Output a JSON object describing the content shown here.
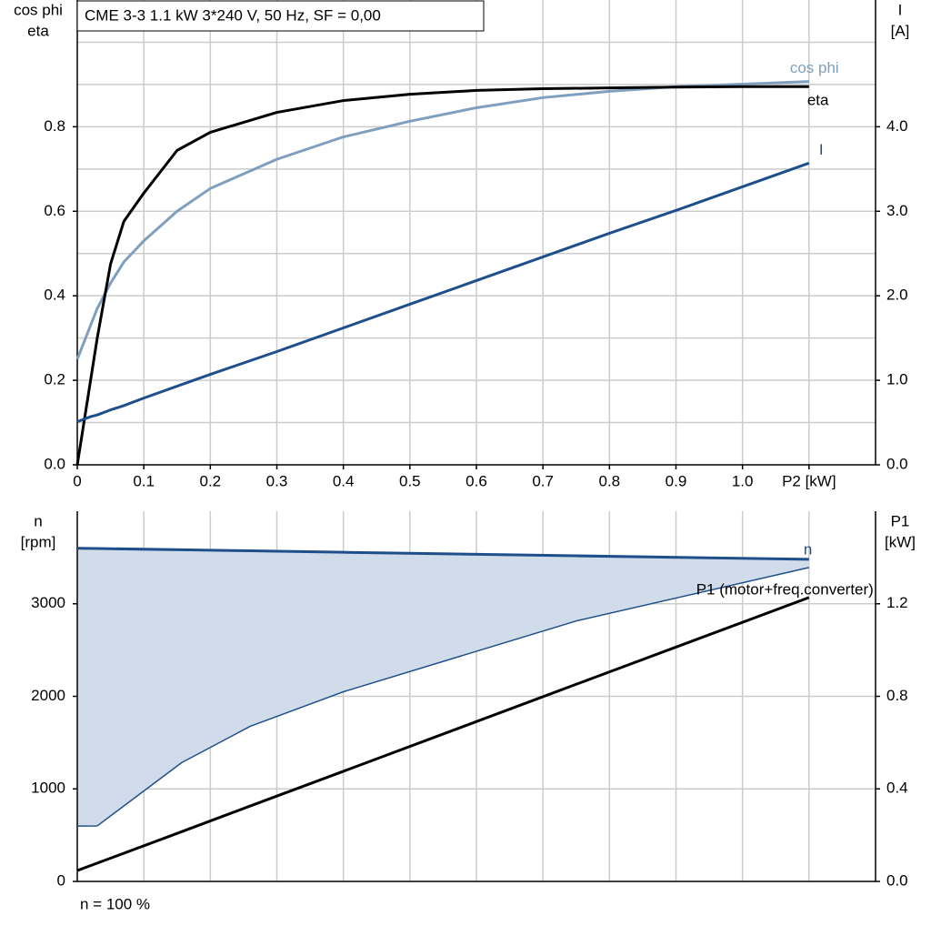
{
  "chart_data": [
    {
      "type": "line",
      "title": "CME 3-3   1.1 kW   3*240 V, 50 Hz, SF = 0,00",
      "ylabel": [
        "cos phi",
        "eta"
      ],
      "y2label": [
        "I",
        "[A]"
      ],
      "xlim": [
        0,
        1.2
      ],
      "xticks": [
        0,
        0.1,
        0.2,
        0.3,
        0.4,
        0.5,
        0.6,
        0.7,
        0.8,
        0.9,
        {
          "value": 1,
          "label": "1.0"
        },
        {
          "value": 1.1,
          "label": "P2 [kW]"
        }
      ],
      "xgrid": [
        0.1,
        0.2,
        0.3,
        0.4,
        0.5,
        0.6,
        0.7,
        0.8,
        0.9,
        1.0,
        1.1
      ],
      "ylim": [
        0,
        1.1
      ],
      "yticks": [
        {
          "value": 0,
          "label": "0.0"
        },
        0.2,
        0.4,
        0.6,
        0.8
      ],
      "ygrid": [
        0.1,
        0.2,
        0.3,
        0.4,
        0.5,
        0.6,
        0.7,
        0.8,
        0.9,
        1.0
      ],
      "y2lim": [
        0,
        5.5
      ],
      "y2ticks": [
        {
          "value": 0,
          "label": "0.0"
        },
        {
          "value": 1,
          "label": "1.0"
        },
        {
          "value": 2,
          "label": "2.0"
        },
        {
          "value": 3,
          "label": "3.0"
        },
        {
          "value": 4,
          "label": "4.0"
        }
      ],
      "x": [
        0,
        0.02,
        0.03,
        0.05,
        0.07,
        0.1,
        0.15,
        0.2,
        0.3,
        0.4,
        0.5,
        0.6,
        0.7,
        0.8,
        0.9,
        1.0,
        1.1
      ],
      "series": [
        {
          "name": "cos phi",
          "color": "#7f9fbf",
          "line_width": 3,
          "values": [
            0.25,
            0.33,
            0.37,
            0.43,
            0.48,
            0.53,
            0.6,
            0.654,
            0.723,
            0.776,
            0.813,
            0.845,
            0.869,
            0.884,
            0.895,
            0.901,
            0.907
          ]
        },
        {
          "name": "eta",
          "color": "#000000",
          "line_width": 3,
          "values": [
            0,
            0.2,
            0.3,
            0.475,
            0.576,
            0.643,
            0.744,
            0.787,
            0.834,
            0.862,
            0.877,
            0.886,
            0.89,
            0.892,
            0.894,
            0.895,
            0.895
          ]
        },
        {
          "name": "I",
          "color": "#1f4f8a",
          "line_width": 3,
          "axis": "y2",
          "values": [
            0.51,
            0.57,
            0.59,
            0.65,
            0.7,
            0.79,
            0.93,
            1.07,
            1.34,
            1.62,
            1.9,
            2.18,
            2.46,
            2.74,
            3.01,
            3.29,
            3.57
          ]
        }
      ]
    },
    {
      "type": "line",
      "ylabel": [
        "n",
        "[rpm]"
      ],
      "y2label": [
        "P1",
        "[kW]"
      ],
      "footnote": "n = 100 %",
      "xlim": [
        0,
        1.2
      ],
      "xgrid": [
        0.1,
        0.2,
        0.3,
        0.4,
        0.5,
        0.6,
        0.7,
        0.8,
        0.9,
        1.0,
        1.1
      ],
      "ylim": [
        0,
        4000
      ],
      "yticks": [
        0,
        1000,
        2000,
        3000
      ],
      "ygrid": [
        1000,
        2000,
        3000
      ],
      "y2lim": [
        0,
        1.6
      ],
      "y2ticks": [
        {
          "value": 0,
          "label": "0.0"
        },
        0.4,
        0.8,
        1.2
      ],
      "band_color": "#d0dce9",
      "x": [
        0,
        0.03,
        0.157,
        0.26,
        0.4,
        0.75,
        1.1
      ],
      "series": [
        {
          "name": "n",
          "color": "#1f4f8a",
          "line_width": 3,
          "values": [
            3600,
            3597,
            3583,
            3572,
            3556,
            3518,
            3480
          ]
        },
        {
          "color": "#1f4f8a",
          "line_width": 1.5,
          "values": [
            598,
            600,
            1284,
            1676,
            2049,
            2814,
            3392
          ]
        },
        {
          "name": "P1 (motor+freq.converter)",
          "color": "#000000",
          "line_width": 3,
          "axis": "y2",
          "values": [
            0.047,
            0.079,
            0.215,
            0.326,
            0.476,
            0.852,
            1.227
          ]
        }
      ]
    }
  ]
}
